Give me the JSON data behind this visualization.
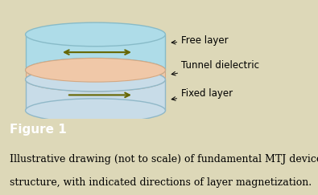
{
  "background_color": "#ddd8b8",
  "free_layer_color": "#aedce8",
  "free_layer_edge": "#88bbc8",
  "tunnel_color": "#f0c8a8",
  "tunnel_edge": "#d4a882",
  "fixed_layer_color": "#c8dce8",
  "fixed_layer_edge": "#90b8c8",
  "arrow_color": "#666600",
  "label_fontsize": 8.5,
  "figure_label": "Figure 1",
  "caption_line1": "Illustrative drawing (not to scale) of fundamental MTJ device",
  "caption_line2": "structure, with indicated directions of layer magnetization.",
  "caption_fontsize": 9,
  "figure_label_fontsize": 11,
  "label_bg": "#a09858",
  "caption_bg": "#f5f5f5"
}
